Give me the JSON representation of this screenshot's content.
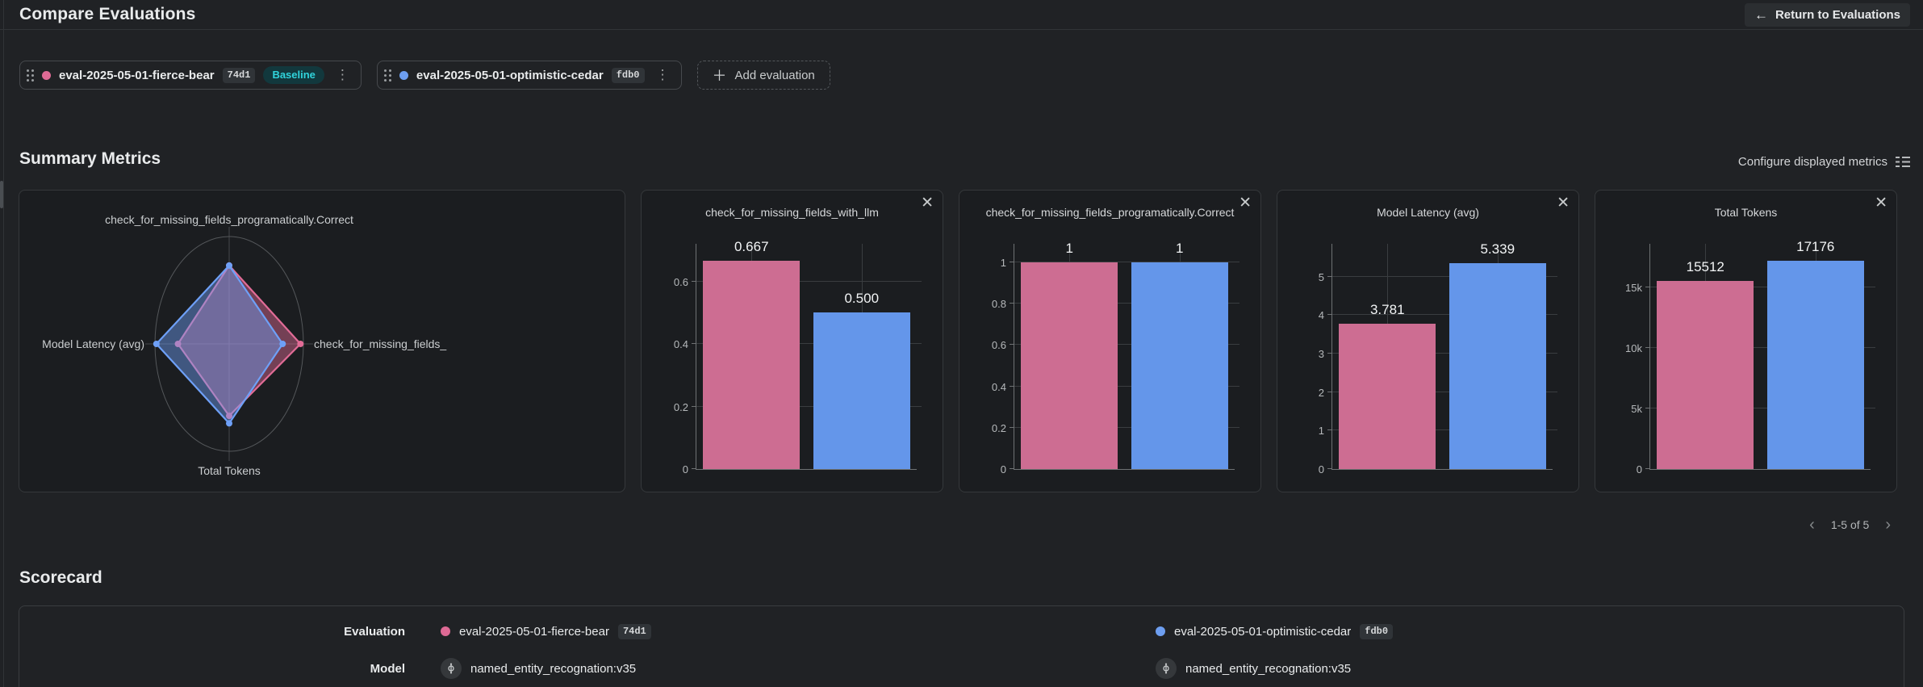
{
  "header": {
    "title": "Compare Evaluations",
    "return_button": "Return to Evaluations"
  },
  "series_colors": [
    "#cd6d92",
    "#6496ea"
  ],
  "evaluations": [
    {
      "name": "eval-2025-05-01-fierce-bear",
      "id": "74d1",
      "baseline_label": "Baseline",
      "color": "#de6a95"
    },
    {
      "name": "eval-2025-05-01-optimistic-cedar",
      "id": "fdb0",
      "color": "#6d9ef0"
    }
  ],
  "add_evaluation_label": "Add evaluation",
  "summary": {
    "title": "Summary Metrics",
    "configure_label": "Configure displayed metrics",
    "pagination": "1-5 of 5"
  },
  "chart_data": [
    {
      "type": "radar",
      "axes": [
        "check_for_missing_fields_programatically.Correct",
        "check_for_missing_fields_",
        "Total Tokens",
        "Model Latency (avg)"
      ],
      "series": [
        {
          "name": "eval-2025-05-01-fierce-bear",
          "color": "#e26c97",
          "values": [
            1,
            0.667,
            15512,
            3.781
          ],
          "r": [
            0.73,
            0.96,
            0.67,
            0.69
          ]
        },
        {
          "name": "eval-2025-05-01-optimistic-cedar",
          "color": "#6ea0f7",
          "values": [
            1,
            0.5,
            17176,
            5.339
          ],
          "r": [
            0.73,
            0.72,
            0.74,
            0.98
          ]
        }
      ]
    },
    {
      "type": "bar",
      "title": "check_for_missing_fields_with_llm",
      "categories": [
        "eval-2025-05-01-fierce-bear",
        "eval-2025-05-01-optimistic-cedar"
      ],
      "values": [
        0.667,
        0.5
      ],
      "value_labels": [
        "0.667",
        "0.500"
      ],
      "ymax": 0.72,
      "ticks": [
        {
          "v": 0,
          "label": "0"
        },
        {
          "v": 0.2,
          "label": "0.2"
        },
        {
          "v": 0.4,
          "label": "0.4"
        },
        {
          "v": 0.6,
          "label": "0.6"
        }
      ]
    },
    {
      "type": "bar",
      "title": "check_for_missing_fields_programatically.Correct",
      "categories": [
        "eval-2025-05-01-fierce-bear",
        "eval-2025-05-01-optimistic-cedar"
      ],
      "values": [
        1,
        1
      ],
      "value_labels": [
        "1",
        "1"
      ],
      "ymax": 1.09,
      "ticks": [
        {
          "v": 0,
          "label": "0"
        },
        {
          "v": 0.2,
          "label": "0.2"
        },
        {
          "v": 0.4,
          "label": "0.4"
        },
        {
          "v": 0.6,
          "label": "0.6"
        },
        {
          "v": 0.8,
          "label": "0.8"
        },
        {
          "v": 1,
          "label": "1"
        }
      ]
    },
    {
      "type": "bar",
      "title": "Model Latency (avg)",
      "categories": [
        "eval-2025-05-01-fierce-bear",
        "eval-2025-05-01-optimistic-cedar"
      ],
      "values": [
        3.781,
        5.339
      ],
      "value_labels": [
        "3.781",
        "5.339"
      ],
      "ymax": 5.85,
      "ticks": [
        {
          "v": 0,
          "label": "0"
        },
        {
          "v": 1,
          "label": "1"
        },
        {
          "v": 2,
          "label": "2"
        },
        {
          "v": 3,
          "label": "3"
        },
        {
          "v": 4,
          "label": "4"
        },
        {
          "v": 5,
          "label": "5"
        }
      ]
    },
    {
      "type": "bar",
      "title": "Total Tokens",
      "categories": [
        "eval-2025-05-01-fierce-bear",
        "eval-2025-05-01-optimistic-cedar"
      ],
      "values": [
        15512,
        17176
      ],
      "value_labels": [
        "15512",
        "17176"
      ],
      "ymax": 18600,
      "ticks": [
        {
          "v": 0,
          "label": "0"
        },
        {
          "v": 5000,
          "label": "5k"
        },
        {
          "v": 10000,
          "label": "10k"
        },
        {
          "v": 15000,
          "label": "15k"
        }
      ]
    }
  ],
  "scorecard": {
    "title": "Scorecard",
    "row_labels": [
      "Evaluation",
      "Model"
    ],
    "columns": [
      {
        "evaluation": "eval-2025-05-01-fierce-bear",
        "evaluation_id": "74d1",
        "model": "named_entity_recognation:v35",
        "color": "#de6a95"
      },
      {
        "evaluation": "eval-2025-05-01-optimistic-cedar",
        "evaluation_id": "fdb0",
        "model": "named_entity_recognation:v35",
        "color": "#6d9ef0"
      }
    ]
  }
}
